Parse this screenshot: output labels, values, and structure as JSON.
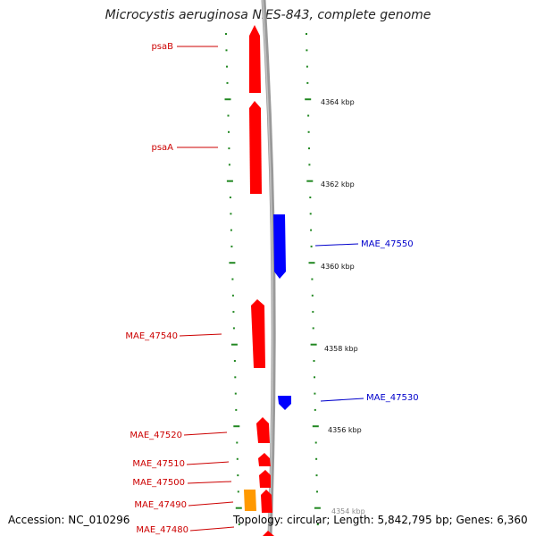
{
  "title": "Microcystis aeruginosa NIES-843, complete genome",
  "accession": "Accession: NC_010296",
  "topology": "Topology: circular; Length: 5,842,795 bp; Genes: 6,360",
  "colors": {
    "forward_gene": "#ff0000",
    "reverse_gene": "#0000ff",
    "other_gene": "#ff9900",
    "backbone": "#888888",
    "tick": "#228822"
  },
  "kbp_labels": [
    "4364 kbp",
    "4362 kbp",
    "4360 kbp",
    "4358 kbp",
    "4356 kbp",
    "4354 kbp"
  ],
  "genes": [
    {
      "label": "psaB",
      "strand": "forward"
    },
    {
      "label": "psaA",
      "strand": "forward"
    },
    {
      "label": "MAE_47550",
      "strand": "reverse"
    },
    {
      "label": "MAE_47540",
      "strand": "forward"
    },
    {
      "label": "MAE_47530",
      "strand": "reverse"
    },
    {
      "label": "MAE_47520",
      "strand": "forward"
    },
    {
      "label": "MAE_47510",
      "strand": "forward"
    },
    {
      "label": "MAE_47500",
      "strand": "forward"
    },
    {
      "label": "MAE_47490",
      "strand": "other"
    },
    {
      "label": "MAE_47480",
      "strand": "forward"
    }
  ]
}
